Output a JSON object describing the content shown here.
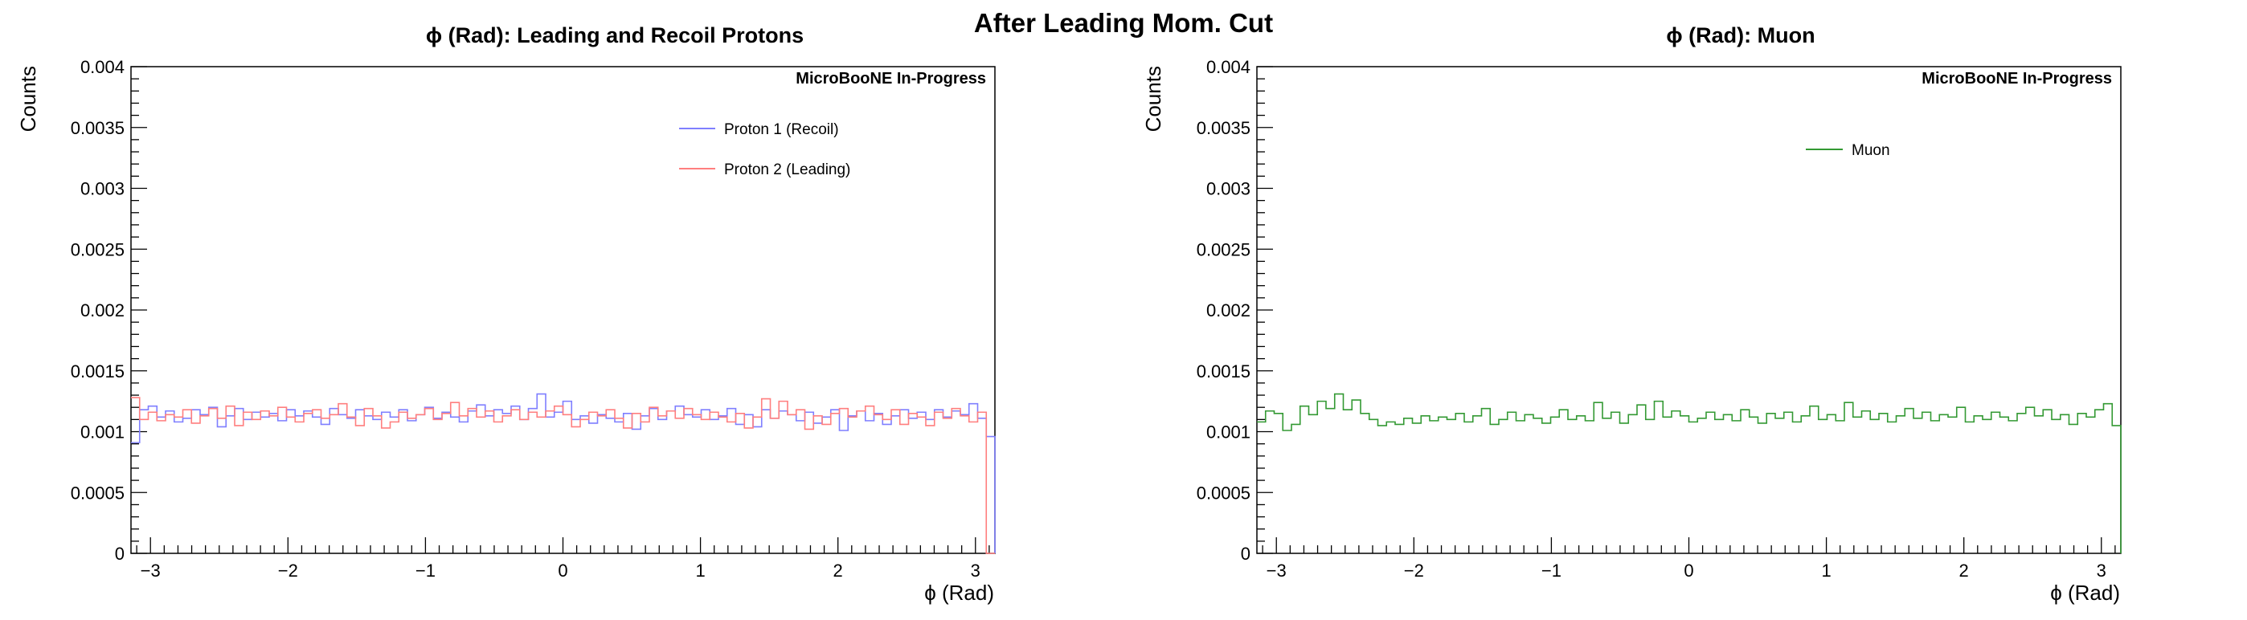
{
  "figure": {
    "title": "After Leading Mom. Cut"
  },
  "chart_data": [
    {
      "type": "line",
      "step": true,
      "title": "ϕ (Rad): Leading and Recoil Protons",
      "xlabel": "ϕ (Rad)",
      "ylabel": "Counts",
      "xlim": [
        -3.1416,
        3.1416
      ],
      "ylim": [
        0,
        0.004
      ],
      "x_ticks": [
        -3,
        -2,
        -1,
        0,
        1,
        2,
        3
      ],
      "x_tick_labels": [
        "−3",
        "−2",
        "−1",
        "0",
        "1",
        "2",
        "3"
      ],
      "y_ticks": [
        0,
        0.0005,
        0.001,
        0.0015,
        0.002,
        0.0025,
        0.003,
        0.0035,
        0.004
      ],
      "y_tick_labels": [
        "0",
        "0.0005",
        "0.001",
        "0.0015",
        "0.002",
        "0.0025",
        "0.003",
        "0.0035",
        "0.004"
      ],
      "grid": false,
      "legend_position": "top-right",
      "annotation": "MicroBooNE In-Progress",
      "series": [
        {
          "name": "Proton 1 (Recoil)",
          "color": "#7f7fff",
          "values": [
            0.00091,
            0.00118,
            0.00121,
            0.00112,
            0.00117,
            0.00108,
            0.00111,
            0.00118,
            0.00114,
            0.0012,
            0.00104,
            0.00113,
            0.00119,
            0.0011,
            0.00116,
            0.00112,
            0.00115,
            0.00109,
            0.00118,
            0.00113,
            0.00117,
            0.00112,
            0.00106,
            0.00119,
            0.00114,
            0.00111,
            0.00118,
            0.00113,
            0.0011,
            0.00116,
            0.00112,
            0.00118,
            0.00109,
            0.00114,
            0.0012,
            0.00111,
            0.00116,
            0.00112,
            0.00108,
            0.00117,
            0.00122,
            0.00113,
            0.00118,
            0.00115,
            0.00121,
            0.0011,
            0.00119,
            0.00131,
            0.00112,
            0.00116,
            0.00125,
            0.0011,
            0.00113,
            0.00107,
            0.00114,
            0.00111,
            0.00108,
            0.00115,
            0.00102,
            0.00113,
            0.00119,
            0.0011,
            0.00117,
            0.00121,
            0.00114,
            0.00112,
            0.00118,
            0.0011,
            0.00113,
            0.00119,
            0.00106,
            0.00114,
            0.00104,
            0.00118,
            0.00111,
            0.00117,
            0.00114,
            0.00109,
            0.00116,
            0.00107,
            0.00112,
            0.00118,
            0.00101,
            0.00113,
            0.00117,
            0.00109,
            0.00115,
            0.00106,
            0.00113,
            0.00118,
            0.00111,
            0.00116,
            0.0011,
            0.00118,
            0.00112,
            0.00117,
            0.00114,
            0.00123,
            0.00111,
            0.00096
          ]
        },
        {
          "name": "Proton 2 (Leading)",
          "color": "#ff7f7f",
          "values": [
            0.00128,
            0.0011,
            0.00116,
            0.00109,
            0.00114,
            0.00112,
            0.00118,
            0.00107,
            0.00113,
            0.00119,
            0.00111,
            0.00121,
            0.00105,
            0.00116,
            0.0011,
            0.00117,
            0.00113,
            0.0012,
            0.00112,
            0.00108,
            0.00115,
            0.00118,
            0.00111,
            0.00114,
            0.00123,
            0.00112,
            0.00105,
            0.00119,
            0.00113,
            0.00103,
            0.00108,
            0.00116,
            0.00111,
            0.00114,
            0.00119,
            0.0011,
            0.00115,
            0.00124,
            0.00113,
            0.00119,
            0.00112,
            0.00117,
            0.00108,
            0.00113,
            0.00118,
            0.0011,
            0.00116,
            0.00112,
            0.00117,
            0.00121,
            0.00114,
            0.00104,
            0.0011,
            0.00116,
            0.00113,
            0.00118,
            0.00111,
            0.00103,
            0.00115,
            0.00108,
            0.0012,
            0.00113,
            0.00117,
            0.00111,
            0.00119,
            0.00114,
            0.0011,
            0.00116,
            0.00112,
            0.00108,
            0.00115,
            0.00103,
            0.00112,
            0.00127,
            0.00111,
            0.00125,
            0.00114,
            0.00118,
            0.00102,
            0.00113,
            0.00106,
            0.00115,
            0.00119,
            0.00112,
            0.00117,
            0.00121,
            0.00114,
            0.0011,
            0.00118,
            0.00106,
            0.00115,
            0.00112,
            0.00105,
            0.00116,
            0.00111,
            0.00119,
            0.00113,
            0.00108,
            0.00116,
            0.0
          ]
        }
      ]
    },
    {
      "type": "line",
      "step": true,
      "title": "ϕ (Rad): Muon",
      "xlabel": "ϕ (Rad)",
      "ylabel": "Counts",
      "xlim": [
        -3.1416,
        3.1416
      ],
      "ylim": [
        0,
        0.004
      ],
      "x_ticks": [
        -3,
        -2,
        -1,
        0,
        1,
        2,
        3
      ],
      "x_tick_labels": [
        "−3",
        "−2",
        "−1",
        "0",
        "1",
        "2",
        "3"
      ],
      "y_ticks": [
        0,
        0.0005,
        0.001,
        0.0015,
        0.002,
        0.0025,
        0.003,
        0.0035,
        0.004
      ],
      "y_tick_labels": [
        "0",
        "0.0005",
        "0.001",
        "0.0015",
        "0.002",
        "0.0025",
        "0.003",
        "0.0035",
        "0.004"
      ],
      "grid": false,
      "legend_position": "top-right",
      "annotation": "MicroBooNE In-Progress",
      "series": [
        {
          "name": "Muon",
          "color": "#339933",
          "values": [
            0.00108,
            0.00117,
            0.00115,
            0.00101,
            0.00106,
            0.00121,
            0.00114,
            0.00125,
            0.00119,
            0.00131,
            0.00118,
            0.00126,
            0.00115,
            0.0011,
            0.00105,
            0.00108,
            0.00106,
            0.00111,
            0.00107,
            0.00113,
            0.00109,
            0.00112,
            0.0011,
            0.00115,
            0.00108,
            0.00113,
            0.00119,
            0.00106,
            0.0011,
            0.00116,
            0.00109,
            0.00114,
            0.00111,
            0.00107,
            0.00112,
            0.00118,
            0.0011,
            0.00113,
            0.00109,
            0.00124,
            0.00111,
            0.00116,
            0.00107,
            0.00114,
            0.00122,
            0.0011,
            0.00125,
            0.00112,
            0.00117,
            0.00113,
            0.00108,
            0.00111,
            0.00116,
            0.0011,
            0.00114,
            0.00109,
            0.00118,
            0.00112,
            0.00107,
            0.00115,
            0.00111,
            0.00116,
            0.00108,
            0.00113,
            0.00121,
            0.0011,
            0.00114,
            0.00109,
            0.00124,
            0.00112,
            0.00117,
            0.0011,
            0.00115,
            0.00108,
            0.00113,
            0.00119,
            0.00111,
            0.00116,
            0.00109,
            0.00114,
            0.00112,
            0.0012,
            0.00108,
            0.00113,
            0.0011,
            0.00116,
            0.00112,
            0.00109,
            0.00115,
            0.0012,
            0.00113,
            0.00118,
            0.0011,
            0.00114,
            0.00106,
            0.00115,
            0.00112,
            0.00118,
            0.00123,
            0.00105
          ]
        }
      ]
    }
  ]
}
